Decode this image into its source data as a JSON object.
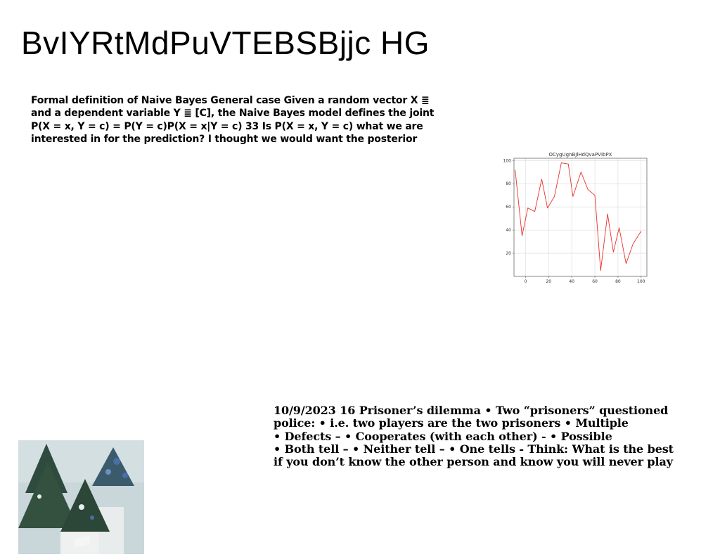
{
  "slide": {
    "title": "BvIYRtMdPuVTEBSBjjc HG",
    "paragraph_1_lines": [
      "Formal definition of Naive Bayes General case Given a random vector X ≣",
      "and a dependent variable Y ≣ [C], the Naive Bayes model defines the joint",
      "P(X = x, Y = c) = P(Y = c)P(X = x|Y = c) 33 Is P(X = x, Y = c) what we are",
      "interested in for the prediction? I thought we would want the posterior"
    ],
    "paragraph_2_lines": [
      "10/9/2023 16 Prisoner’s dilemma • Two “prisoners” questioned",
      "police: • i.e. two players are the two prisoners • Multiple",
      "• Defects – • Cooperates (with each other) - • Possible",
      "• Both tell – • Neither tell – • One tells - Think: What is the best",
      "if you don’t know the other person and know you will never play"
    ]
  },
  "photo": {
    "icon": "christmas-trees-photo",
    "colors": {
      "background": "#c9d6da",
      "tree": "#2f4a3e",
      "accent": "#4a6fa5",
      "base": "#e8ecec"
    }
  },
  "chart_data": {
    "type": "line",
    "title": "OCygUgnBJlHdQvaPVIbPX",
    "xlabel": "",
    "ylabel": "",
    "xlim": [
      -10,
      105
    ],
    "ylim": [
      0,
      102
    ],
    "xticks": [
      0,
      20,
      40,
      60,
      80,
      100
    ],
    "yticks": [
      20,
      40,
      60,
      80,
      100
    ],
    "grid": true,
    "line_color": "#e8302a",
    "series": [
      {
        "x": [
          -9,
          -3,
          2,
          8,
          14,
          19,
          25,
          31,
          37,
          41,
          48,
          54,
          60,
          65,
          71,
          76,
          81,
          87,
          93,
          100
        ],
        "y": [
          92,
          35,
          59,
          56,
          84,
          59,
          69,
          98,
          97,
          69,
          90,
          75,
          70,
          5,
          54,
          21,
          42,
          11,
          28,
          39
        ]
      }
    ]
  }
}
